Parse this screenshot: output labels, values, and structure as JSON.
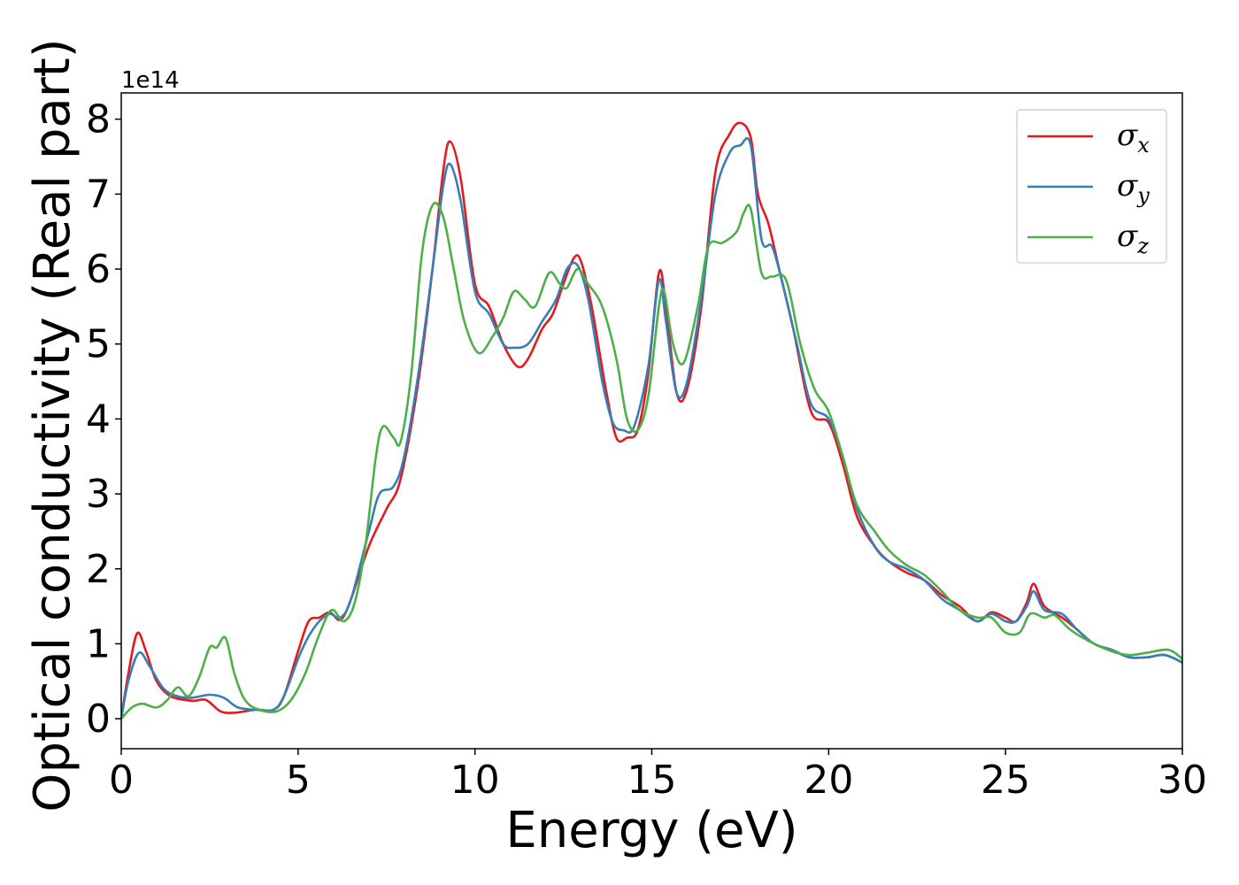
{
  "chart_data": {
    "type": "line",
    "title": "",
    "xlabel": "Energy (eV)",
    "ylabel": "Optical conductivity (Real part)",
    "y_offset_label": "1e14",
    "xlim": [
      0,
      30
    ],
    "ylim": [
      -0.4,
      8.35
    ],
    "xticks": [
      "0",
      "5",
      "10",
      "15",
      "20",
      "25",
      "30"
    ],
    "yticks": [
      "0",
      "1",
      "2",
      "3",
      "4",
      "5",
      "6",
      "7",
      "8"
    ],
    "grid": false,
    "legend": "top-right",
    "series": [
      {
        "name": "σx",
        "symbol": "σ",
        "sub": "x",
        "color": "#e41a1c",
        "points": [
          [
            0,
            0
          ],
          [
            0.2,
            0.6
          ],
          [
            0.45,
            1.14
          ],
          [
            0.7,
            0.9
          ],
          [
            1,
            0.5
          ],
          [
            1.4,
            0.3
          ],
          [
            2,
            0.24
          ],
          [
            2.4,
            0.25
          ],
          [
            2.8,
            0.1
          ],
          [
            3.2,
            0.08
          ],
          [
            3.8,
            0.12
          ],
          [
            4.3,
            0.12
          ],
          [
            4.6,
            0.3
          ],
          [
            5,
            0.9
          ],
          [
            5.3,
            1.3
          ],
          [
            5.6,
            1.35
          ],
          [
            5.9,
            1.42
          ],
          [
            6.2,
            1.32
          ],
          [
            6.5,
            1.6
          ],
          [
            7,
            2.3
          ],
          [
            7.5,
            2.8
          ],
          [
            7.9,
            3.2
          ],
          [
            8.4,
            4.5
          ],
          [
            8.8,
            6.0
          ],
          [
            9.1,
            7.3
          ],
          [
            9.3,
            7.7
          ],
          [
            9.6,
            7.2
          ],
          [
            10,
            5.8
          ],
          [
            10.4,
            5.5
          ],
          [
            10.8,
            5.0
          ],
          [
            11.2,
            4.7
          ],
          [
            11.5,
            4.8
          ],
          [
            11.9,
            5.2
          ],
          [
            12.2,
            5.4
          ],
          [
            12.5,
            5.8
          ],
          [
            12.8,
            6.15
          ],
          [
            13,
            6.1
          ],
          [
            13.3,
            5.5
          ],
          [
            13.7,
            4.4
          ],
          [
            14,
            3.75
          ],
          [
            14.3,
            3.75
          ],
          [
            14.6,
            3.85
          ],
          [
            14.9,
            4.6
          ],
          [
            15.2,
            5.95
          ],
          [
            15.4,
            5.5
          ],
          [
            15.7,
            4.35
          ],
          [
            16,
            4.4
          ],
          [
            16.4,
            5.5
          ],
          [
            16.8,
            7.3
          ],
          [
            17.2,
            7.8
          ],
          [
            17.5,
            7.95
          ],
          [
            17.8,
            7.75
          ],
          [
            18,
            7.0
          ],
          [
            18.3,
            6.6
          ],
          [
            18.6,
            6.0
          ],
          [
            19,
            5.2
          ],
          [
            19.5,
            4.1
          ],
          [
            20,
            3.95
          ],
          [
            20.4,
            3.4
          ],
          [
            20.8,
            2.7
          ],
          [
            21.3,
            2.3
          ],
          [
            21.7,
            2.1
          ],
          [
            22.2,
            1.95
          ],
          [
            22.7,
            1.85
          ],
          [
            23.2,
            1.65
          ],
          [
            23.7,
            1.5
          ],
          [
            24.2,
            1.3
          ],
          [
            24.6,
            1.42
          ],
          [
            25,
            1.35
          ],
          [
            25.3,
            1.3
          ],
          [
            25.6,
            1.55
          ],
          [
            25.8,
            1.8
          ],
          [
            26.1,
            1.5
          ],
          [
            26.6,
            1.35
          ],
          [
            27,
            1.2
          ],
          [
            27.5,
            1.0
          ],
          [
            28,
            0.92
          ],
          [
            28.5,
            0.82
          ],
          [
            29,
            0.82
          ],
          [
            29.5,
            0.85
          ],
          [
            30,
            0.75
          ]
        ]
      },
      {
        "name": "σy",
        "symbol": "σ",
        "sub": "y",
        "color": "#377eb8",
        "points": [
          [
            0,
            0
          ],
          [
            0.2,
            0.5
          ],
          [
            0.5,
            0.88
          ],
          [
            0.8,
            0.7
          ],
          [
            1.2,
            0.4
          ],
          [
            1.6,
            0.3
          ],
          [
            2,
            0.28
          ],
          [
            2.5,
            0.32
          ],
          [
            2.9,
            0.28
          ],
          [
            3.3,
            0.15
          ],
          [
            3.8,
            0.12
          ],
          [
            4.3,
            0.12
          ],
          [
            4.6,
            0.3
          ],
          [
            5,
            0.8
          ],
          [
            5.3,
            1.1
          ],
          [
            5.6,
            1.3
          ],
          [
            5.9,
            1.4
          ],
          [
            6.2,
            1.35
          ],
          [
            6.5,
            1.6
          ],
          [
            7,
            2.5
          ],
          [
            7.3,
            3.0
          ],
          [
            7.7,
            3.1
          ],
          [
            8,
            3.5
          ],
          [
            8.4,
            4.6
          ],
          [
            8.8,
            6.0
          ],
          [
            9.1,
            7.1
          ],
          [
            9.3,
            7.4
          ],
          [
            9.6,
            6.9
          ],
          [
            10,
            5.7
          ],
          [
            10.4,
            5.4
          ],
          [
            10.8,
            5.0
          ],
          [
            11.1,
            4.95
          ],
          [
            11.5,
            5.0
          ],
          [
            11.9,
            5.3
          ],
          [
            12.3,
            5.6
          ],
          [
            12.6,
            6.0
          ],
          [
            12.9,
            6.05
          ],
          [
            13.2,
            5.6
          ],
          [
            13.6,
            4.5
          ],
          [
            13.9,
            3.95
          ],
          [
            14.2,
            3.85
          ],
          [
            14.5,
            3.9
          ],
          [
            14.9,
            4.7
          ],
          [
            15.2,
            5.85
          ],
          [
            15.4,
            5.3
          ],
          [
            15.7,
            4.35
          ],
          [
            16,
            4.5
          ],
          [
            16.4,
            5.6
          ],
          [
            16.8,
            7.0
          ],
          [
            17.2,
            7.55
          ],
          [
            17.5,
            7.65
          ],
          [
            17.8,
            7.65
          ],
          [
            18.1,
            6.4
          ],
          [
            18.4,
            6.3
          ],
          [
            18.7,
            5.8
          ],
          [
            19.1,
            5.0
          ],
          [
            19.5,
            4.2
          ],
          [
            20,
            4.0
          ],
          [
            20.4,
            3.5
          ],
          [
            20.8,
            2.8
          ],
          [
            21.3,
            2.3
          ],
          [
            21.7,
            2.1
          ],
          [
            22.2,
            2.0
          ],
          [
            22.7,
            1.85
          ],
          [
            23.2,
            1.6
          ],
          [
            23.7,
            1.45
          ],
          [
            24.2,
            1.3
          ],
          [
            24.6,
            1.4
          ],
          [
            25,
            1.3
          ],
          [
            25.3,
            1.3
          ],
          [
            25.6,
            1.5
          ],
          [
            25.8,
            1.7
          ],
          [
            26.1,
            1.45
          ],
          [
            26.6,
            1.4
          ],
          [
            27,
            1.2
          ],
          [
            27.5,
            1.0
          ],
          [
            28,
            0.92
          ],
          [
            28.5,
            0.82
          ],
          [
            29,
            0.82
          ],
          [
            29.5,
            0.85
          ],
          [
            30,
            0.75
          ]
        ]
      },
      {
        "name": "σz",
        "symbol": "σ",
        "sub": "z",
        "color": "#4daf4a",
        "points": [
          [
            0,
            0
          ],
          [
            0.3,
            0.15
          ],
          [
            0.6,
            0.2
          ],
          [
            1,
            0.15
          ],
          [
            1.3,
            0.25
          ],
          [
            1.6,
            0.42
          ],
          [
            1.9,
            0.3
          ],
          [
            2.2,
            0.55
          ],
          [
            2.5,
            0.95
          ],
          [
            2.7,
            0.95
          ],
          [
            2.95,
            1.08
          ],
          [
            3.2,
            0.6
          ],
          [
            3.5,
            0.25
          ],
          [
            3.9,
            0.12
          ],
          [
            4.4,
            0.1
          ],
          [
            4.8,
            0.25
          ],
          [
            5.2,
            0.6
          ],
          [
            5.5,
            1.0
          ],
          [
            5.8,
            1.35
          ],
          [
            6,
            1.45
          ],
          [
            6.3,
            1.3
          ],
          [
            6.6,
            1.55
          ],
          [
            6.9,
            2.3
          ],
          [
            7.2,
            3.5
          ],
          [
            7.4,
            3.9
          ],
          [
            7.7,
            3.75
          ],
          [
            7.9,
            3.7
          ],
          [
            8.2,
            4.6
          ],
          [
            8.5,
            6.2
          ],
          [
            8.8,
            6.85
          ],
          [
            9.1,
            6.7
          ],
          [
            9.4,
            6.0
          ],
          [
            9.7,
            5.3
          ],
          [
            10.1,
            4.88
          ],
          [
            10.5,
            5.1
          ],
          [
            10.8,
            5.35
          ],
          [
            11.1,
            5.7
          ],
          [
            11.4,
            5.6
          ],
          [
            11.7,
            5.5
          ],
          [
            12.1,
            5.95
          ],
          [
            12.4,
            5.8
          ],
          [
            12.6,
            5.75
          ],
          [
            12.9,
            6.0
          ],
          [
            13.2,
            5.8
          ],
          [
            13.6,
            5.5
          ],
          [
            14,
            4.8
          ],
          [
            14.3,
            4.0
          ],
          [
            14.6,
            3.85
          ],
          [
            14.9,
            4.3
          ],
          [
            15.2,
            5.5
          ],
          [
            15.35,
            5.7
          ],
          [
            15.6,
            5.0
          ],
          [
            15.9,
            4.75
          ],
          [
            16.3,
            5.5
          ],
          [
            16.6,
            6.3
          ],
          [
            17,
            6.35
          ],
          [
            17.4,
            6.5
          ],
          [
            17.6,
            6.75
          ],
          [
            17.8,
            6.8
          ],
          [
            18.1,
            5.95
          ],
          [
            18.4,
            5.9
          ],
          [
            18.8,
            5.85
          ],
          [
            19.2,
            5.0
          ],
          [
            19.6,
            4.4
          ],
          [
            20,
            4.1
          ],
          [
            20.4,
            3.5
          ],
          [
            20.8,
            2.85
          ],
          [
            21.3,
            2.5
          ],
          [
            21.7,
            2.25
          ],
          [
            22.2,
            2.05
          ],
          [
            22.7,
            1.92
          ],
          [
            23.2,
            1.7
          ],
          [
            23.7,
            1.45
          ],
          [
            24.2,
            1.35
          ],
          [
            24.6,
            1.35
          ],
          [
            25,
            1.15
          ],
          [
            25.4,
            1.15
          ],
          [
            25.7,
            1.4
          ],
          [
            26.1,
            1.35
          ],
          [
            26.4,
            1.38
          ],
          [
            26.8,
            1.2
          ],
          [
            27.3,
            1.05
          ],
          [
            28,
            0.9
          ],
          [
            28.5,
            0.85
          ],
          [
            29,
            0.88
          ],
          [
            29.6,
            0.92
          ],
          [
            30,
            0.8
          ]
        ]
      }
    ]
  }
}
